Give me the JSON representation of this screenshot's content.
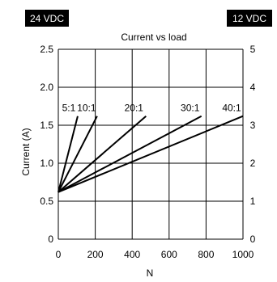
{
  "chart_data": {
    "type": "line",
    "title": "Current vs load",
    "xlabel": "N",
    "ylabel": "Current (A)",
    "xlim": [
      0,
      1000
    ],
    "ylim_left": [
      0,
      2.5
    ],
    "ylim_right": [
      0,
      5
    ],
    "x_ticks": [
      "0",
      "200",
      "400",
      "600",
      "800",
      "1000"
    ],
    "y_ticks_left": [
      "0",
      "0.5",
      "1.0",
      "1.5",
      "2.0",
      "2.5"
    ],
    "y_ticks_right": [
      "0",
      "1",
      "2",
      "3",
      "4",
      "5"
    ],
    "badge_left": "24 VDC",
    "badge_right": "12 VDC",
    "grid": true,
    "series": [
      {
        "name": "5:1",
        "x": [
          0,
          105
        ],
        "y": [
          0.62,
          1.62
        ]
      },
      {
        "name": "10:1",
        "x": [
          0,
          210
        ],
        "y": [
          0.62,
          1.62
        ]
      },
      {
        "name": "20:1",
        "x": [
          0,
          475
        ],
        "y": [
          0.62,
          1.62
        ]
      },
      {
        "name": "30:1",
        "x": [
          0,
          775
        ],
        "y": [
          0.62,
          1.62
        ]
      },
      {
        "name": "40:1",
        "x": [
          0,
          1000
        ],
        "y": [
          0.62,
          1.62
        ]
      }
    ]
  }
}
